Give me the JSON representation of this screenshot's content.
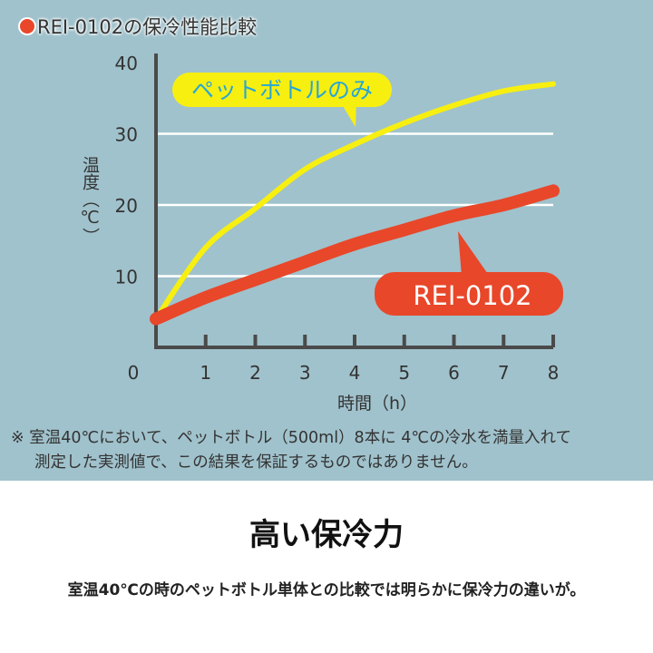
{
  "title": "REI-0102の保冷性能比較",
  "colors": {
    "panel": "#a0c2cc",
    "yellow": "#f7ef10",
    "red": "#e8472a",
    "axis": "#4a4a4a"
  },
  "chart_data": {
    "type": "line",
    "title": "REI-0102の保冷性能比較",
    "xlabel": "時間（h）",
    "ylabel": "温度（℃）",
    "x": [
      0,
      1,
      2,
      3,
      4,
      5,
      6,
      7,
      8
    ],
    "xticks": [
      "0",
      "1",
      "2",
      "3",
      "4",
      "5",
      "6",
      "7",
      "8"
    ],
    "yticks": [
      "10",
      "20",
      "30",
      "40"
    ],
    "ylim": [
      0,
      40
    ],
    "xlim": [
      0,
      8
    ],
    "grid": true,
    "series": [
      {
        "name": "ペットボトルのみ",
        "color": "#f7ef10",
        "values": [
          4,
          14,
          19.5,
          25,
          28.5,
          31.5,
          34,
          36,
          37
        ]
      },
      {
        "name": "REI-0102",
        "color": "#e8472a",
        "values": [
          4,
          7,
          9.5,
          12,
          14.5,
          16.5,
          18.5,
          20,
          22
        ]
      }
    ]
  },
  "note_lines": [
    "※ 室温40℃において、ペットボトル（500ml）8本に 4℃の冷水を満量入れて",
    "測定した実測値で、この結果を保証するものではありません。"
  ],
  "heading": "高い保冷力",
  "subtext": "室温40℃の時のペットボトル単体との比較では明らかに保冷力の違いが。"
}
